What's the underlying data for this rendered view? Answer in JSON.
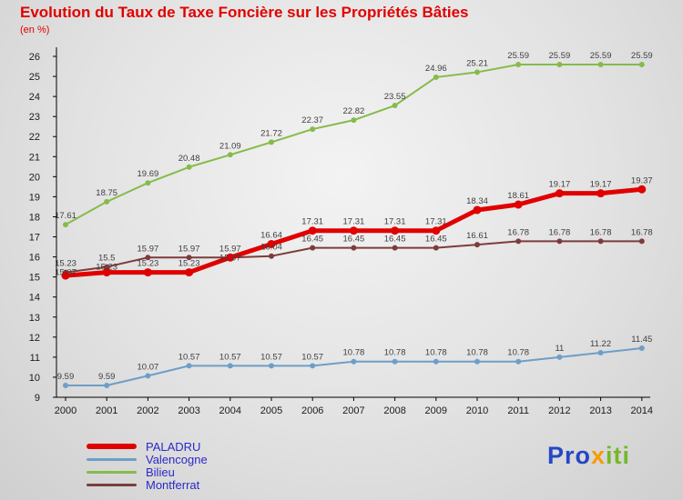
{
  "chart_data": {
    "type": "line",
    "title": "Evolution du Taux de Taxe Foncière sur les Propriétés Bâties",
    "subtitle": "(en %)",
    "x": [
      2000,
      2001,
      2002,
      2003,
      2004,
      2005,
      2006,
      2007,
      2008,
      2009,
      2010,
      2011,
      2012,
      2013,
      2014
    ],
    "ylim": [
      9,
      26
    ],
    "ytick_step": 1,
    "grid": false,
    "legend_position": "bottom-left",
    "series": [
      {
        "name": "PALADRU",
        "color": "#e00000",
        "line_width": 5,
        "values": [
          15.07,
          15.23,
          15.23,
          15.23,
          15.97,
          16.64,
          17.31,
          17.31,
          17.31,
          17.31,
          18.34,
          18.61,
          19.17,
          19.17,
          19.37
        ]
      },
      {
        "name": "Valencogne",
        "color": "#6d9ec8",
        "line_width": 2,
        "values": [
          9.59,
          9.59,
          10.07,
          10.57,
          10.57,
          10.57,
          10.57,
          10.78,
          10.78,
          10.78,
          10.78,
          10.78,
          11,
          11.22,
          11.45
        ]
      },
      {
        "name": "Bilieu",
        "color": "#86bb4a",
        "line_width": 2,
        "values": [
          17.61,
          18.75,
          19.69,
          20.48,
          21.09,
          21.72,
          22.37,
          22.82,
          23.55,
          24.96,
          25.21,
          25.59,
          25.59,
          25.59,
          25.59
        ]
      },
      {
        "name": "Montferrat",
        "color": "#7d3c3c",
        "line_width": 2,
        "values": [
          15.23,
          15.5,
          15.97,
          15.97,
          15.97,
          16.04,
          16.45,
          16.45,
          16.45,
          16.45,
          16.61,
          16.78,
          16.78,
          16.78,
          16.78
        ]
      }
    ]
  },
  "logo": {
    "pro": "Pro",
    "x": "x",
    "iti": "iti"
  }
}
